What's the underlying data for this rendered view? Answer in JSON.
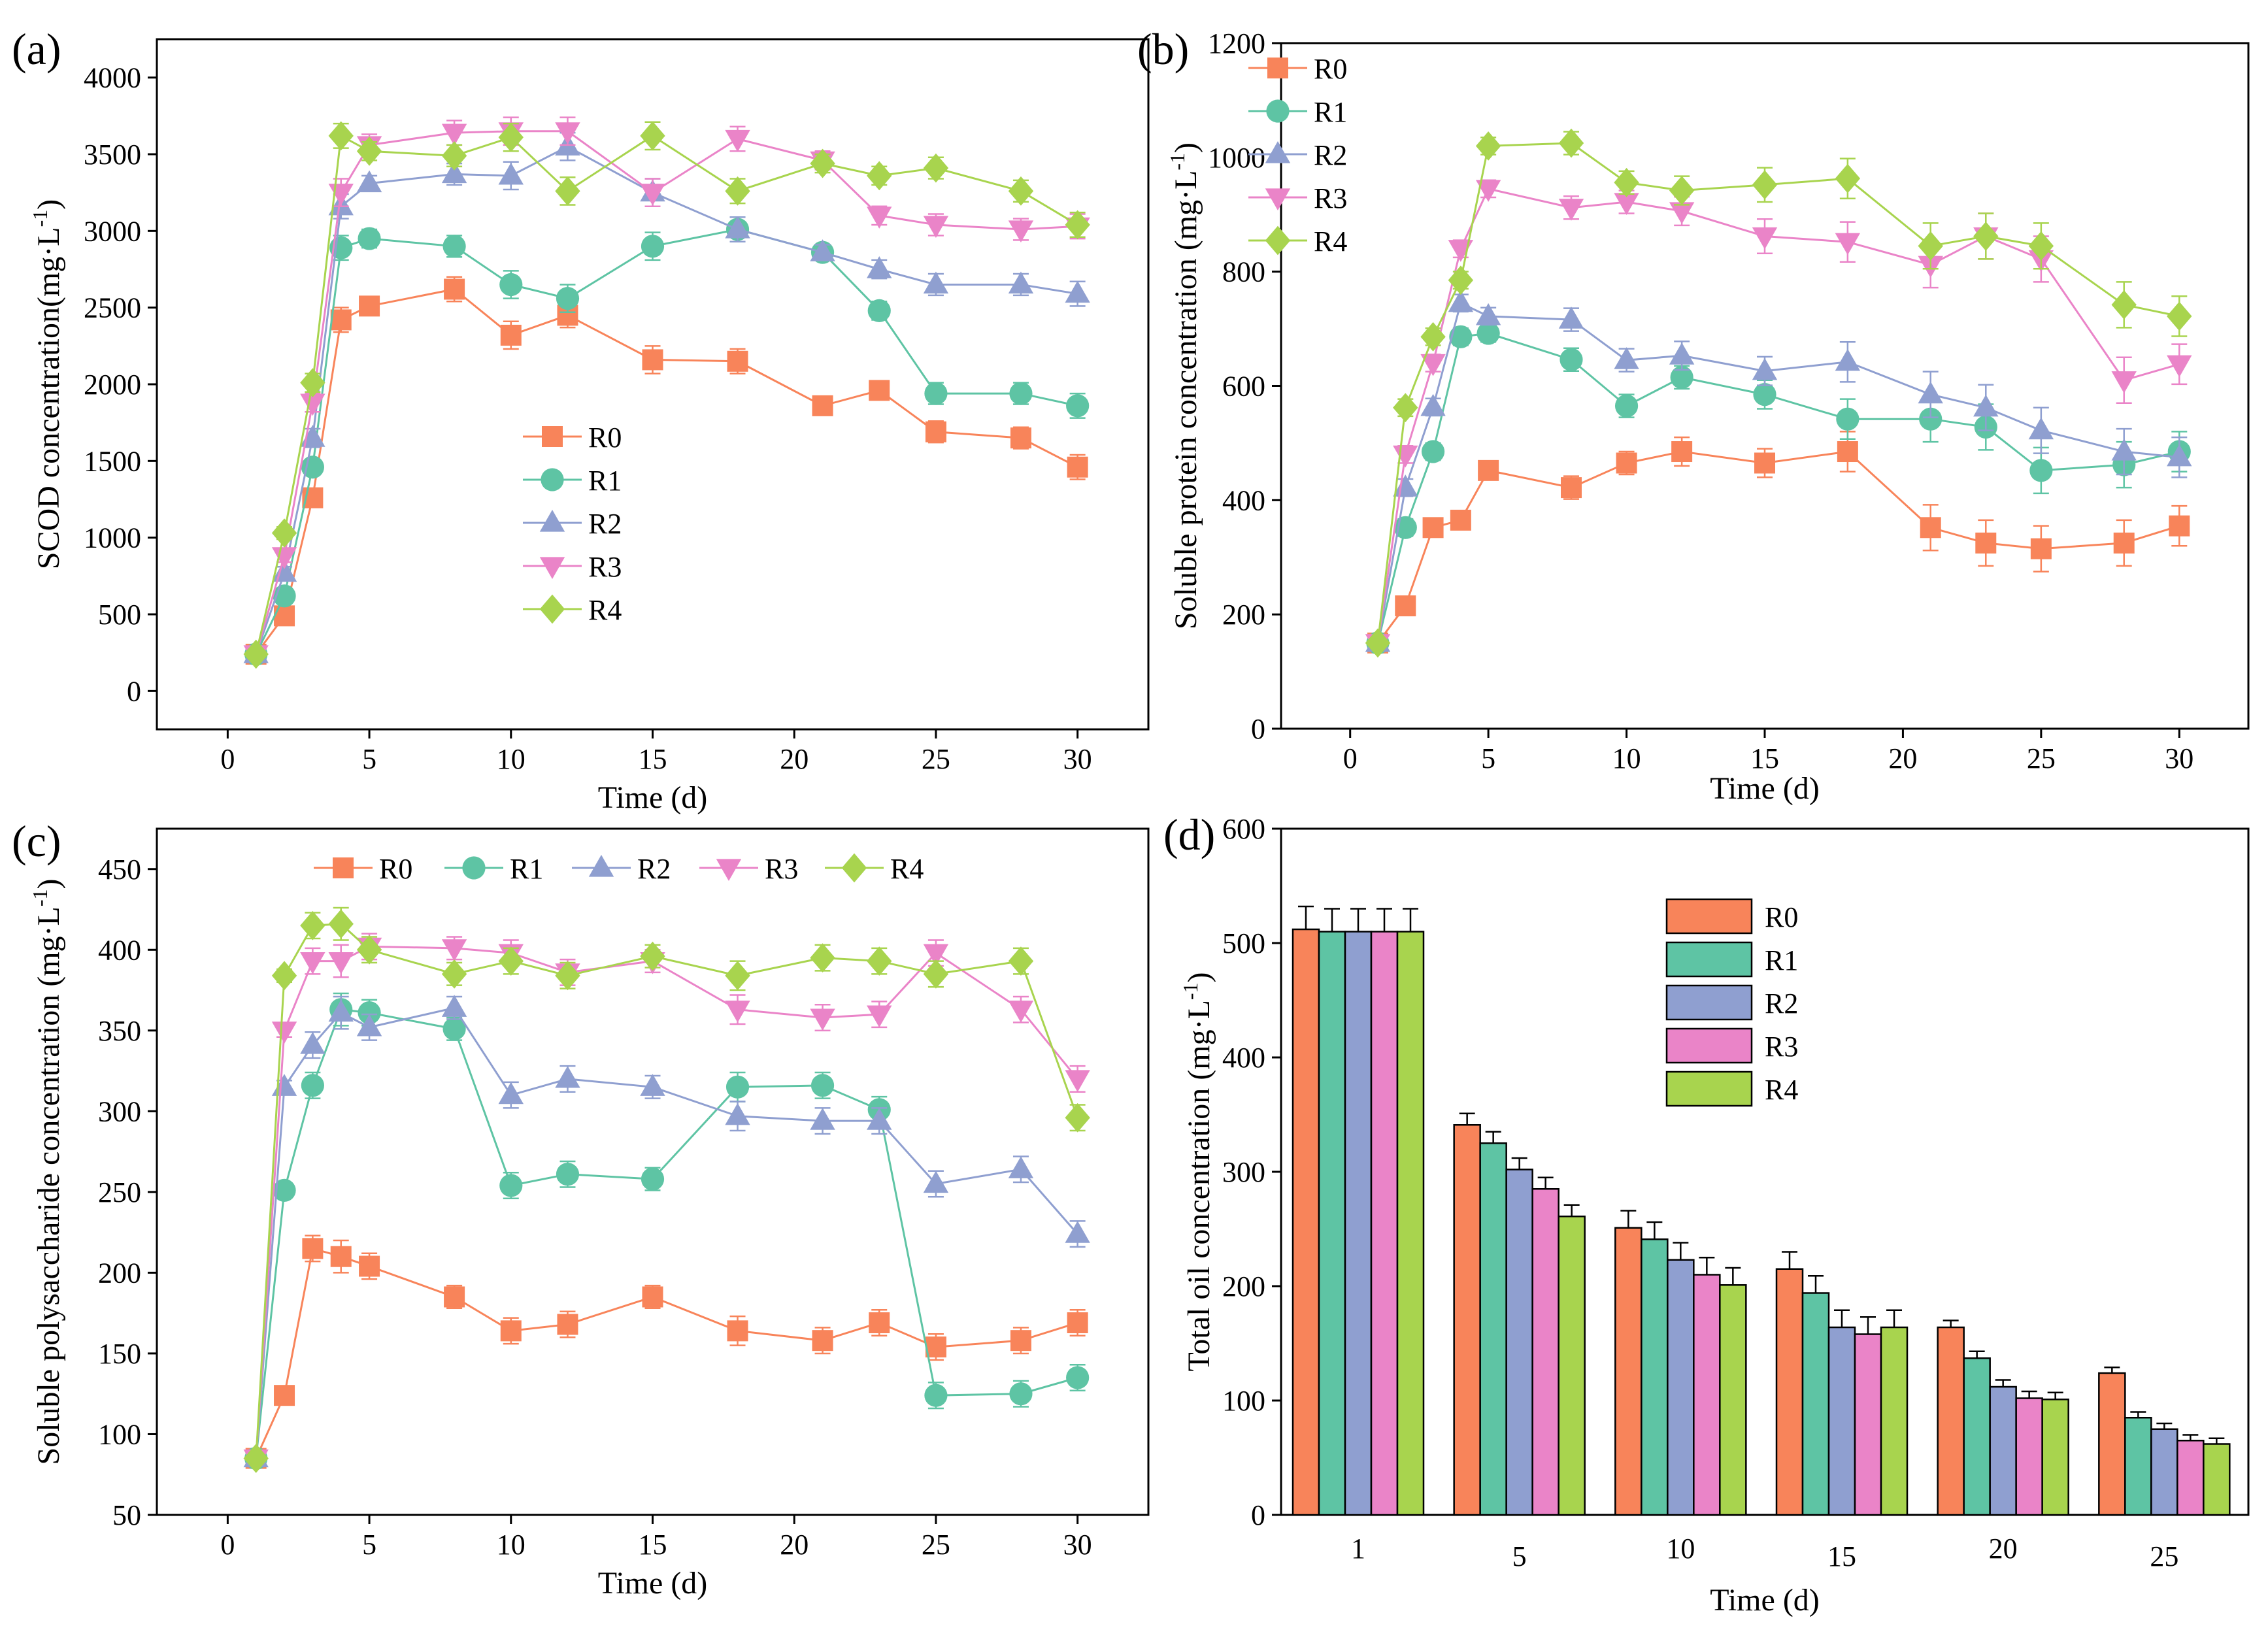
{
  "colors": {
    "R0": "#f8845a",
    "R1": "#5ec4a4",
    "R2": "#8f9fd0",
    "R3": "#ea84c8",
    "R4": "#a8d44e"
  },
  "chart_data": [
    {
      "panel_label": "(a)",
      "type": "line",
      "title": "",
      "xlabel": "Time (d)",
      "ylabel": "SCOD concentration(mg·L",
      "ylabel_sup": "-1",
      "ylabel_tail": ")",
      "xlim": [
        -2.5,
        32.5
      ],
      "ylim": [
        -250,
        4250
      ],
      "xticks": [
        0,
        5,
        10,
        15,
        20,
        25,
        30
      ],
      "yticks": [
        0,
        500,
        1000,
        1500,
        2000,
        2500,
        3000,
        3500,
        4000
      ],
      "legend": "center",
      "x": [
        1,
        2,
        3,
        4,
        5,
        8,
        10,
        12,
        15,
        18,
        21,
        23,
        25,
        28,
        30
      ],
      "series": [
        {
          "name": "R0",
          "marker": "square",
          "values": [
            240,
            490,
            1260,
            2420,
            2510,
            2620,
            2320,
            2450,
            2160,
            2150,
            1860,
            1960,
            1690,
            1650,
            1460
          ],
          "errors": [
            25,
            30,
            50,
            80,
            60,
            80,
            90,
            80,
            90,
            80,
            50,
            50,
            70,
            70,
            80
          ]
        },
        {
          "name": "R1",
          "marker": "circle",
          "values": [
            240,
            620,
            1460,
            2890,
            2950,
            2900,
            2650,
            2560,
            2900,
            3010,
            2860,
            2480,
            1940,
            1940,
            1860
          ],
          "errors": [
            25,
            40,
            50,
            80,
            60,
            70,
            90,
            90,
            90,
            80,
            50,
            60,
            70,
            70,
            80
          ]
        },
        {
          "name": "R2",
          "marker": "triangle-up",
          "values": [
            240,
            770,
            1650,
            3160,
            3310,
            3370,
            3360,
            3550,
            3250,
            3010,
            2860,
            2750,
            2650,
            2650,
            2590
          ],
          "errors": [
            25,
            40,
            60,
            80,
            50,
            70,
            90,
            90,
            90,
            80,
            50,
            60,
            70,
            70,
            80
          ]
        },
        {
          "name": "R3",
          "marker": "triangle-down",
          "values": [
            240,
            880,
            1880,
            3250,
            3560,
            3640,
            3650,
            3650,
            3250,
            3600,
            3460,
            3100,
            3040,
            3010,
            3030
          ],
          "errors": [
            25,
            40,
            60,
            90,
            70,
            80,
            90,
            90,
            90,
            80,
            60,
            60,
            70,
            70,
            80
          ]
        },
        {
          "name": "R4",
          "marker": "diamond",
          "values": [
            240,
            1030,
            2010,
            3620,
            3520,
            3490,
            3610,
            3260,
            3620,
            3260,
            3440,
            3360,
            3410,
            3260,
            3040
          ],
          "errors": [
            25,
            40,
            60,
            80,
            60,
            70,
            90,
            90,
            90,
            80,
            60,
            60,
            70,
            70,
            80
          ]
        }
      ]
    },
    {
      "panel_label": "(b)",
      "type": "line",
      "title": "",
      "xlabel": "Time (d)",
      "ylabel": "Soluble protein concentration (mg·L",
      "ylabel_sup": "-1",
      "ylabel_tail": ")",
      "xlim": [
        -2.5,
        32.5
      ],
      "ylim": [
        0,
        1200
      ],
      "xticks": [
        0,
        5,
        10,
        15,
        20,
        25,
        30
      ],
      "yticks": [
        0,
        200,
        400,
        600,
        800,
        1000,
        1200
      ],
      "legend": "top-left",
      "x": [
        1,
        2,
        3,
        4,
        5,
        8,
        10,
        12,
        15,
        18,
        21,
        23,
        25,
        28,
        30
      ],
      "series": [
        {
          "name": "R0",
          "marker": "square",
          "values": [
            150,
            215,
            352,
            365,
            452,
            422,
            465,
            485,
            465,
            485,
            352,
            325,
            315,
            325,
            355
          ],
          "errors": [
            8,
            12,
            15,
            15,
            15,
            20,
            20,
            25,
            25,
            35,
            40,
            40,
            40,
            40,
            35
          ]
        },
        {
          "name": "R1",
          "marker": "circle",
          "values": [
            150,
            352,
            485,
            686,
            692,
            646,
            565,
            615,
            585,
            542,
            542,
            528,
            452,
            462,
            485
          ],
          "errors": [
            8,
            15,
            15,
            15,
            15,
            20,
            20,
            20,
            25,
            35,
            40,
            40,
            40,
            40,
            35
          ]
        },
        {
          "name": "R2",
          "marker": "triangle-up",
          "values": [
            150,
            422,
            563,
            745,
            722,
            716,
            645,
            653,
            626,
            642,
            585,
            562,
            522,
            485,
            475
          ],
          "errors": [
            8,
            15,
            15,
            15,
            15,
            20,
            20,
            25,
            25,
            35,
            40,
            40,
            40,
            40,
            35
          ]
        },
        {
          "name": "R3",
          "marker": "triangle-down",
          "values": [
            150,
            480,
            640,
            840,
            945,
            912,
            922,
            906,
            862,
            852,
            812,
            862,
            822,
            610,
            638
          ],
          "errors": [
            8,
            15,
            15,
            15,
            15,
            20,
            20,
            25,
            30,
            35,
            40,
            40,
            40,
            40,
            35
          ]
        },
        {
          "name": "R4",
          "marker": "diamond",
          "values": [
            150,
            562,
            686,
            785,
            1020,
            1025,
            956,
            942,
            952,
            963,
            845,
            862,
            845,
            742,
            722
          ],
          "errors": [
            8,
            15,
            15,
            15,
            15,
            20,
            20,
            25,
            30,
            35,
            40,
            40,
            40,
            40,
            35
          ]
        }
      ]
    },
    {
      "panel_label": "(c)",
      "type": "line",
      "title": "",
      "xlabel": "Time (d)",
      "ylabel": "Soluble polysaccharide concentration (mg·L",
      "ylabel_sup": "-1",
      "ylabel_tail": ")",
      "xlim": [
        -2.5,
        32.5
      ],
      "ylim": [
        50,
        475
      ],
      "xticks": [
        0,
        5,
        10,
        15,
        20,
        25,
        30
      ],
      "yticks": [
        50,
        100,
        150,
        200,
        250,
        300,
        350,
        400,
        450
      ],
      "legend": "top",
      "x": [
        1,
        2,
        3,
        4,
        5,
        8,
        10,
        12,
        15,
        18,
        21,
        23,
        25,
        28,
        30
      ],
      "series": [
        {
          "name": "R0",
          "marker": "square",
          "values": [
            85,
            124,
            215,
            210,
            204,
            185,
            164,
            168,
            185,
            164,
            158,
            169,
            154,
            158,
            169
          ],
          "errors": [
            3,
            4,
            8,
            10,
            8,
            7,
            8,
            8,
            7,
            9,
            8,
            8,
            8,
            8,
            8
          ]
        },
        {
          "name": "R1",
          "marker": "circle",
          "values": [
            85,
            251,
            316,
            363,
            361,
            351,
            254,
            261,
            258,
            315,
            316,
            301,
            124,
            125,
            135
          ],
          "errors": [
            3,
            4,
            8,
            10,
            8,
            7,
            8,
            8,
            7,
            9,
            8,
            8,
            8,
            8,
            8
          ]
        },
        {
          "name": "R2",
          "marker": "triangle-up",
          "values": [
            85,
            315,
            341,
            361,
            352,
            364,
            310,
            320,
            315,
            297,
            294,
            294,
            255,
            264,
            224
          ],
          "errors": [
            3,
            4,
            8,
            10,
            8,
            7,
            8,
            8,
            7,
            9,
            8,
            8,
            8,
            8,
            8
          ]
        },
        {
          "name": "R3",
          "marker": "triangle-down",
          "values": [
            85,
            350,
            393,
            393,
            402,
            401,
            398,
            386,
            393,
            363,
            358,
            360,
            398,
            363,
            320
          ],
          "errors": [
            3,
            4,
            8,
            10,
            8,
            7,
            8,
            8,
            7,
            9,
            8,
            8,
            8,
            8,
            8
          ]
        },
        {
          "name": "R4",
          "marker": "diamond",
          "values": [
            85,
            384,
            415,
            416,
            400,
            385,
            393,
            384,
            396,
            384,
            395,
            393,
            385,
            393,
            296
          ],
          "errors": [
            3,
            4,
            8,
            10,
            8,
            7,
            8,
            8,
            7,
            9,
            8,
            8,
            8,
            8,
            8
          ]
        }
      ]
    },
    {
      "panel_label": "(d)",
      "type": "bar",
      "title": "",
      "xlabel": "Time (d)",
      "ylabel": "Total oil concentration (mg·L",
      "ylabel_sup": "-1",
      "ylabel_tail": ")",
      "ylim": [
        0,
        600
      ],
      "yticks": [
        0,
        100,
        200,
        300,
        400,
        500,
        600
      ],
      "legend": "top-right",
      "categories": [
        "1",
        "5",
        "10",
        "15",
        "20",
        "25"
      ],
      "series": [
        {
          "name": "R0",
          "values": [
            512,
            341,
            251,
            215,
            164,
            124
          ],
          "errors": [
            20,
            10,
            15,
            15,
            6,
            5
          ]
        },
        {
          "name": "R1",
          "values": [
            510,
            325,
            241,
            194,
            137,
            85
          ],
          "errors": [
            20,
            10,
            15,
            15,
            6,
            5
          ]
        },
        {
          "name": "R2",
          "values": [
            510,
            302,
            223,
            164,
            112,
            75
          ],
          "errors": [
            20,
            10,
            15,
            15,
            6,
            5
          ]
        },
        {
          "name": "R3",
          "values": [
            510,
            285,
            210,
            158,
            102,
            65
          ],
          "errors": [
            20,
            10,
            15,
            15,
            6,
            5
          ]
        },
        {
          "name": "R4",
          "values": [
            510,
            261,
            201,
            164,
            101,
            62
          ],
          "errors": [
            20,
            10,
            15,
            15,
            6,
            5
          ]
        }
      ]
    }
  ]
}
